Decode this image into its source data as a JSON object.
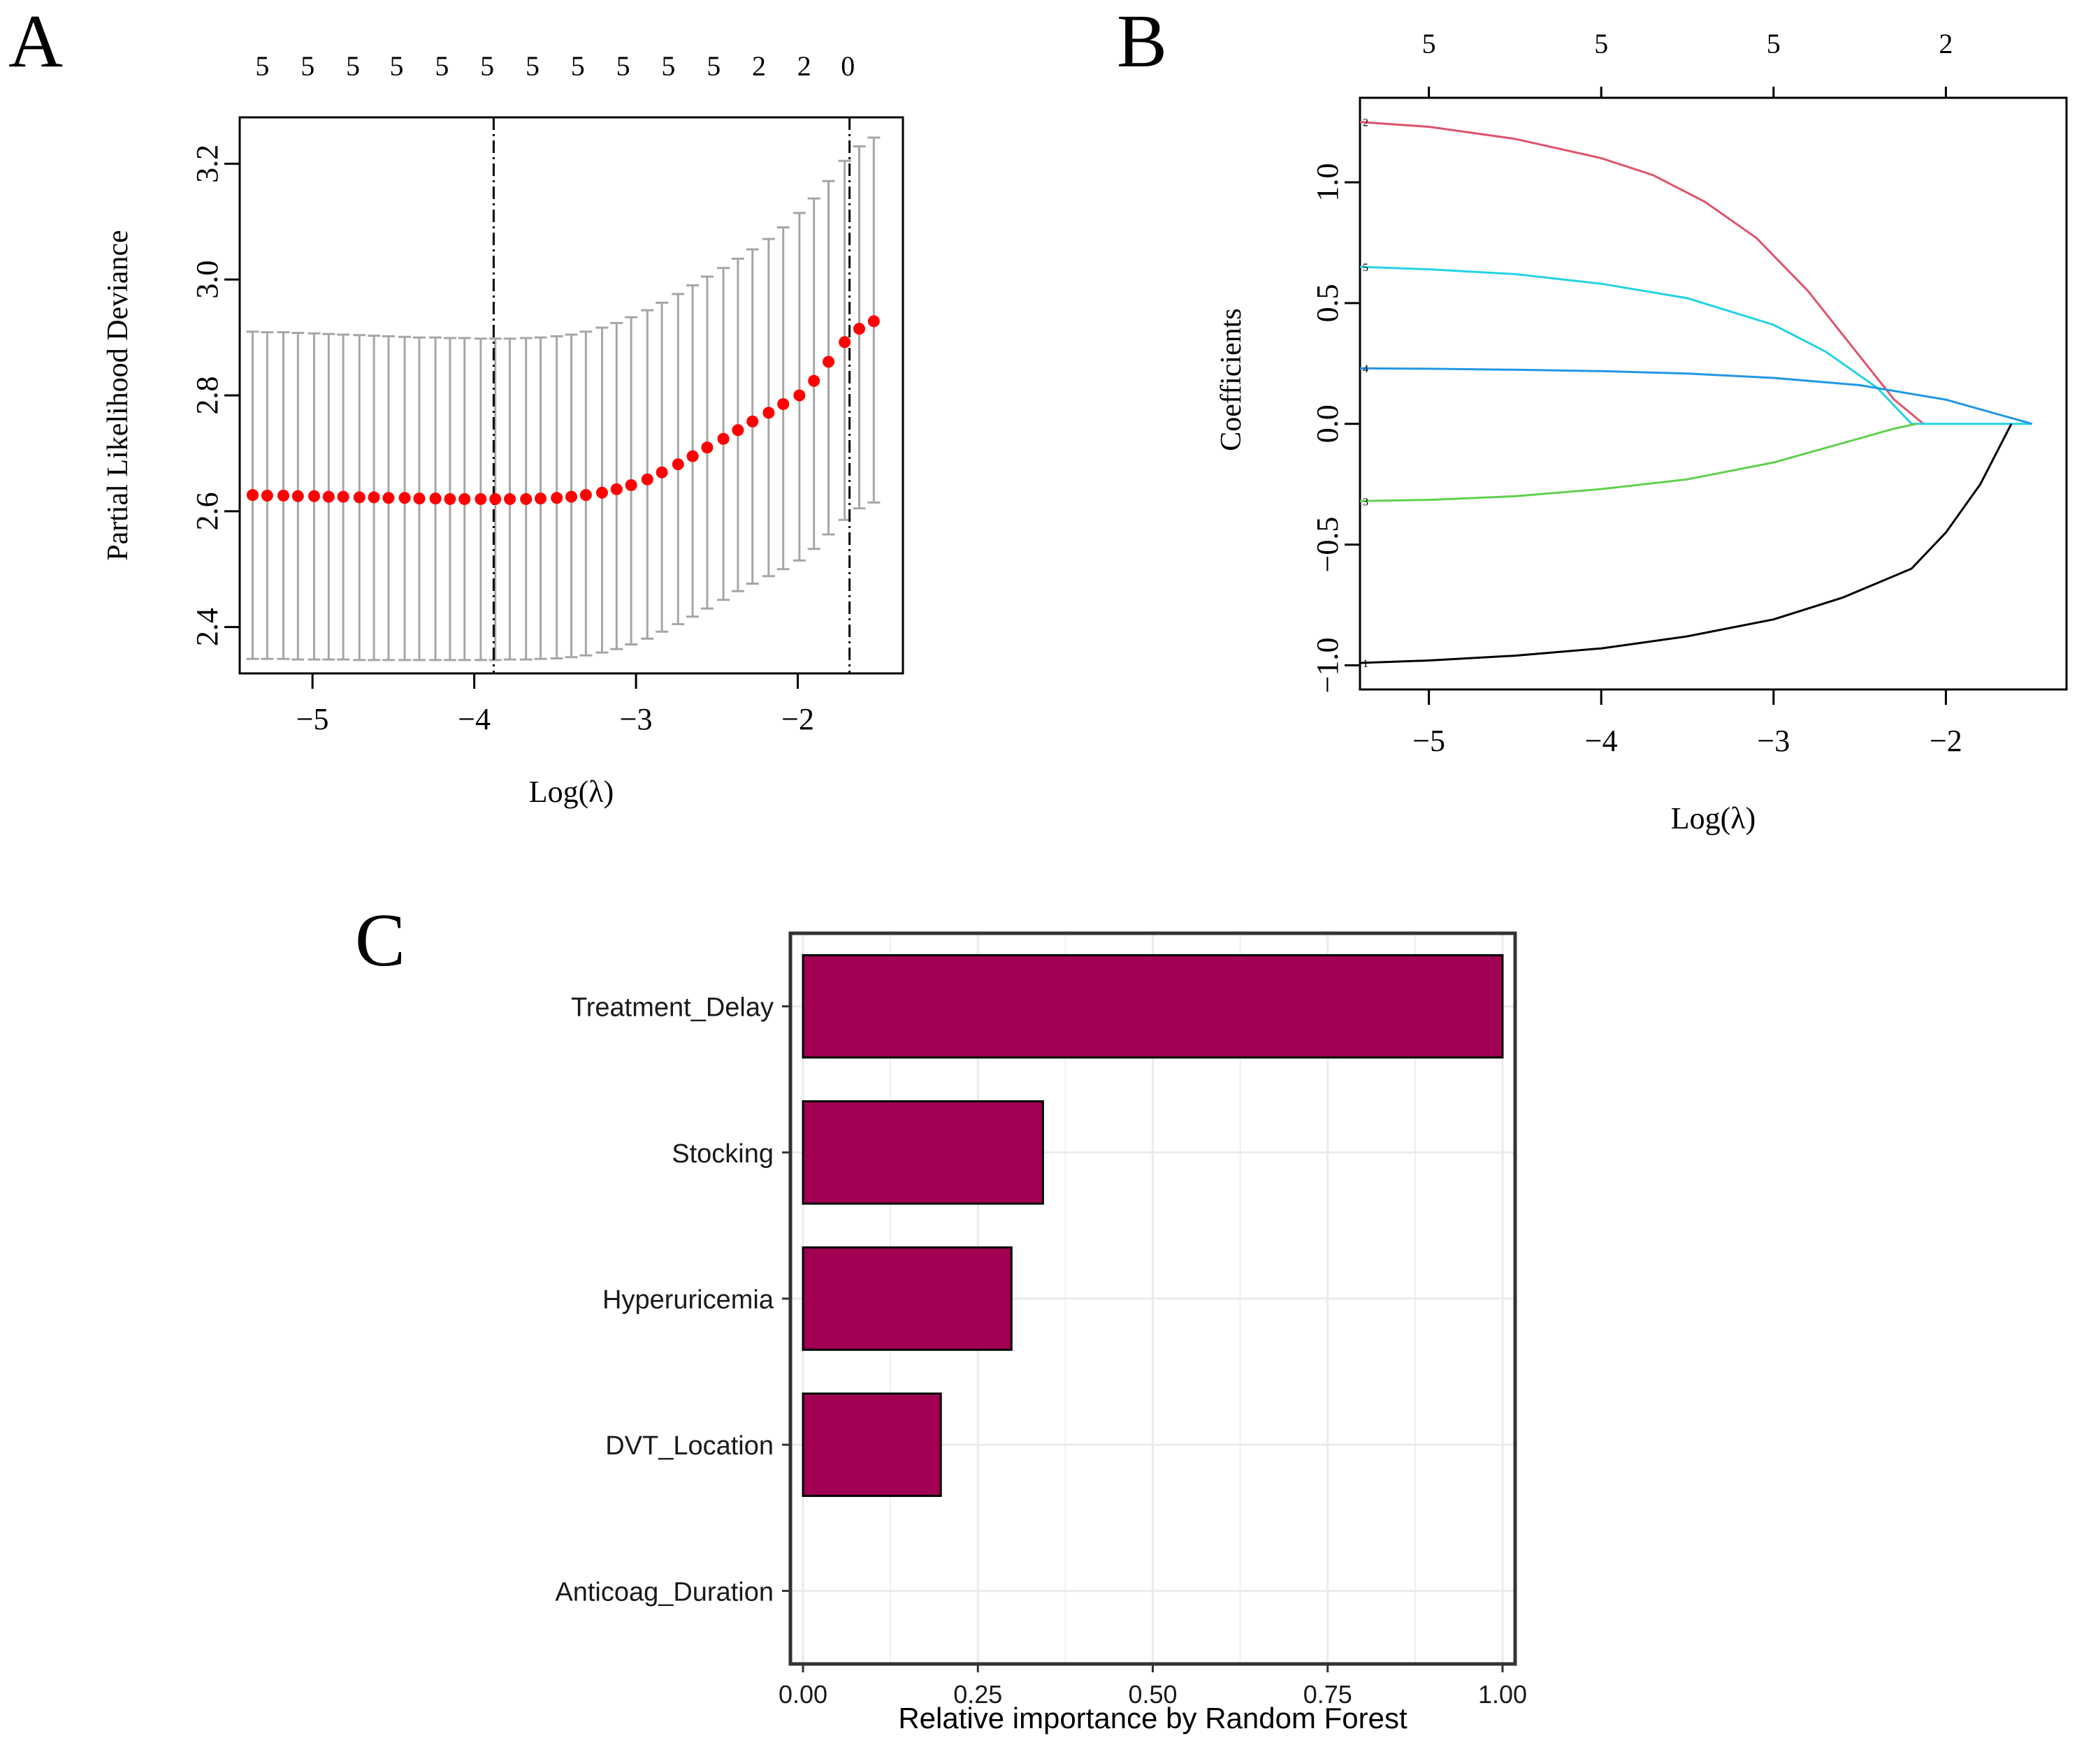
{
  "chart_data": [
    {
      "panel": "A",
      "type": "scatter",
      "subtype": "cross-validation error bars",
      "xlabel": "Log(λ)",
      "ylabel": "Partial Likelihood Deviance",
      "xlim": [
        -5.45,
        -1.35
      ],
      "ylim": [
        2.32,
        3.28
      ],
      "xticks": [
        -5,
        -4,
        -3,
        -2
      ],
      "xtick_labels": [
        "−5",
        "−4",
        "−3",
        "−2"
      ],
      "yticks": [
        2.4,
        2.6,
        2.8,
        3.0,
        3.2
      ],
      "ytick_labels": [
        "2.4",
        "2.6",
        "2.8",
        "3.0",
        "3.2"
      ],
      "top_axis_values": [
        -5.31,
        -5.03,
        -4.75,
        -4.48,
        -4.2,
        -3.92,
        -3.64,
        -3.36,
        -3.08,
        -2.8,
        -2.52,
        -2.24,
        -1.96,
        -1.69
      ],
      "top_axis_labels": [
        "5",
        "5",
        "5",
        "5",
        "5",
        "5",
        "5",
        "5",
        "5",
        "5",
        "5",
        "2",
        "2",
        "0"
      ],
      "vlines": [
        -3.88,
        -1.68
      ],
      "x": [
        -5.37,
        -5.28,
        -5.18,
        -5.09,
        -4.99,
        -4.9,
        -4.81,
        -4.71,
        -4.62,
        -4.53,
        -4.43,
        -4.34,
        -4.24,
        -4.15,
        -4.06,
        -3.96,
        -3.87,
        -3.78,
        -3.68,
        -3.59,
        -3.49,
        -3.4,
        -3.31,
        -3.21,
        -3.12,
        -3.03,
        -2.93,
        -2.84,
        -2.74,
        -2.65,
        -2.56,
        -2.46,
        -2.37,
        -2.28,
        -2.18,
        -2.09,
        -1.99,
        -1.9,
        -1.81,
        -1.71,
        -1.62,
        -1.53
      ],
      "y": [
        2.628,
        2.627,
        2.627,
        2.626,
        2.626,
        2.625,
        2.625,
        2.624,
        2.624,
        2.623,
        2.623,
        2.622,
        2.622,
        2.621,
        2.621,
        2.621,
        2.621,
        2.621,
        2.621,
        2.622,
        2.623,
        2.625,
        2.628,
        2.632,
        2.638,
        2.645,
        2.655,
        2.667,
        2.681,
        2.695,
        2.71,
        2.725,
        2.74,
        2.755,
        2.77,
        2.785,
        2.8,
        2.825,
        2.858,
        2.892,
        2.915,
        2.928
      ],
      "ci_upper": [
        2.91,
        2.909,
        2.909,
        2.908,
        2.907,
        2.906,
        2.905,
        2.904,
        2.903,
        2.902,
        2.901,
        2.9,
        2.9,
        2.899,
        2.899,
        2.898,
        2.898,
        2.898,
        2.899,
        2.9,
        2.902,
        2.905,
        2.91,
        2.917,
        2.925,
        2.935,
        2.947,
        2.96,
        2.975,
        2.99,
        3.005,
        3.02,
        3.036,
        3.052,
        3.07,
        3.09,
        3.115,
        3.14,
        3.17,
        3.205,
        3.23,
        3.245
      ],
      "ci_lower": [
        2.345,
        2.345,
        2.345,
        2.344,
        2.344,
        2.344,
        2.344,
        2.343,
        2.343,
        2.343,
        2.343,
        2.343,
        2.343,
        2.343,
        2.343,
        2.343,
        2.343,
        2.344,
        2.344,
        2.345,
        2.346,
        2.348,
        2.351,
        2.356,
        2.362,
        2.37,
        2.38,
        2.392,
        2.405,
        2.418,
        2.432,
        2.447,
        2.462,
        2.475,
        2.488,
        2.5,
        2.515,
        2.535,
        2.56,
        2.585,
        2.605,
        2.615
      ],
      "colors": {
        "points": "#ff0000",
        "errorbars": "#a6a6a6",
        "vlines": "#000000"
      }
    },
    {
      "panel": "B",
      "type": "line",
      "subtype": "coefficient paths",
      "xlabel": "Log(λ)",
      "ylabel": "Coefficients",
      "xlim": [
        -5.4,
        -1.3
      ],
      "ylim": [
        -1.1,
        1.35
      ],
      "xticks": [
        -5,
        -4,
        -3,
        -2
      ],
      "xtick_labels": [
        "−5",
        "−4",
        "−3",
        "−2"
      ],
      "yticks": [
        -1.0,
        -0.5,
        0.0,
        0.5,
        1.0
      ],
      "ytick_labels": [
        "−1.0",
        "−0.5",
        "0.0",
        "0.5",
        "1.0"
      ],
      "top_axis_values": [
        -5,
        -4,
        -3,
        -2
      ],
      "top_axis_labels": [
        "5",
        "5",
        "5",
        "2"
      ],
      "series": [
        {
          "name": "2",
          "color": "#df536b",
          "x": [
            -5.4,
            -5.0,
            -4.5,
            -4.0,
            -3.7,
            -3.4,
            -3.1,
            -2.8,
            -2.5,
            -2.3,
            -2.13
          ],
          "y": [
            1.25,
            1.23,
            1.18,
            1.1,
            1.03,
            0.92,
            0.77,
            0.55,
            0.28,
            0.1,
            0.0
          ]
        },
        {
          "name": "5",
          "color": "#22d3e6",
          "x": [
            -5.4,
            -5.0,
            -4.5,
            -4.0,
            -3.5,
            -3.0,
            -2.7,
            -2.4,
            -2.2,
            -2.0,
            -1.8,
            -1.6,
            -1.5
          ],
          "y": [
            0.65,
            0.64,
            0.62,
            0.58,
            0.52,
            0.41,
            0.3,
            0.15,
            0.0,
            0.0,
            0.0,
            0.0,
            0.0
          ]
        },
        {
          "name": "4",
          "color": "#2297e6",
          "x": [
            -5.4,
            -5.0,
            -4.5,
            -4.0,
            -3.5,
            -3.0,
            -2.5,
            -2.0,
            -1.7,
            -1.5
          ],
          "y": [
            0.23,
            0.228,
            0.224,
            0.218,
            0.208,
            0.19,
            0.16,
            0.1,
            0.04,
            0.0
          ]
        },
        {
          "name": "3",
          "color": "#61d04f",
          "x": [
            -5.4,
            -5.0,
            -4.5,
            -4.0,
            -3.5,
            -3.0,
            -2.6,
            -2.3,
            -2.17
          ],
          "y": [
            -0.32,
            -0.315,
            -0.3,
            -0.27,
            -0.23,
            -0.16,
            -0.08,
            -0.02,
            0.0
          ]
        },
        {
          "name": "1",
          "color": "#000000",
          "x": [
            -5.4,
            -5.0,
            -4.5,
            -4.0,
            -3.5,
            -3.0,
            -2.6,
            -2.2,
            -2.0,
            -1.8,
            -1.62
          ],
          "y": [
            -0.99,
            -0.98,
            -0.96,
            -0.93,
            -0.88,
            -0.81,
            -0.72,
            -0.6,
            -0.45,
            -0.25,
            0.0
          ]
        }
      ]
    },
    {
      "panel": "C",
      "type": "bar",
      "orientation": "horizontal",
      "xlabel": "Relative importance by Random Forest",
      "ylabel": "",
      "xlim": [
        -0.018,
        1.018
      ],
      "xticks": [
        0,
        0.25,
        0.5,
        0.75,
        1.0
      ],
      "xtick_labels": [
        "0.00",
        "0.25",
        "0.50",
        "0.75",
        "1.00"
      ],
      "categories": [
        "Treatment_Delay",
        "Stocking",
        "Hyperuricemia",
        "DVT_Location",
        "Anticoag_Duration"
      ],
      "values": [
        1.0,
        0.343,
        0.298,
        0.197,
        0.0
      ],
      "colors": {
        "bar": "#a20053",
        "grid": "#ebebeb",
        "frame": "#333333"
      }
    }
  ],
  "panel_labels": {
    "a": "A",
    "b": "B",
    "c": "C"
  }
}
